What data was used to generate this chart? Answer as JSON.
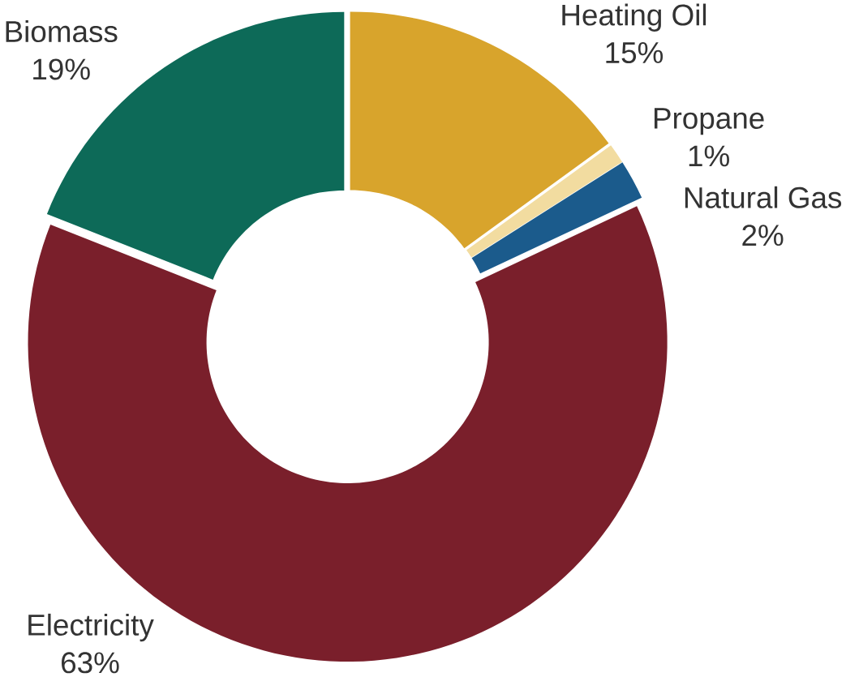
{
  "chart_data": {
    "type": "donut",
    "categories": [
      "Heating Oil",
      "Propane",
      "Natural Gas",
      "Electricity",
      "Biomass"
    ],
    "values": [
      15,
      1,
      2,
      63,
      19
    ],
    "value_labels": [
      "15%",
      "1%",
      "2%",
      "63%",
      "19%"
    ],
    "colors": [
      "#d8a42c",
      "#f2dca0",
      "#1b5b8c",
      "#7a1f2b",
      "#0d6a58"
    ]
  }
}
